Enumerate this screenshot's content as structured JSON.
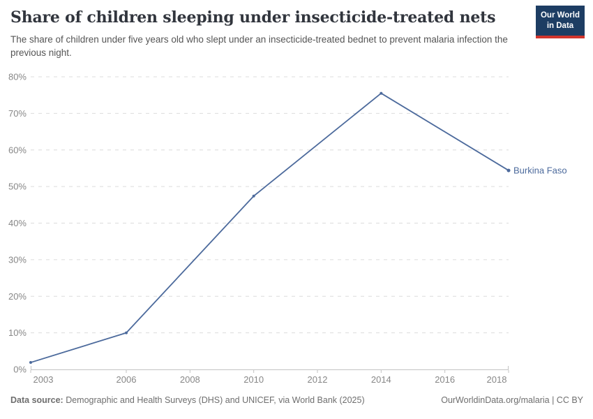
{
  "header": {
    "title": "Share of children sleeping under insecticide-treated nets",
    "subtitle": "The share of children under five years old who slept under an insecticide-treated bednet to prevent malaria infection the previous night.",
    "logo": {
      "line1": "Our World",
      "line2": "in Data"
    }
  },
  "chart_data": {
    "type": "line",
    "title": "Share of children sleeping under insecticide-treated nets",
    "xlabel": "",
    "ylabel": "",
    "xlim": [
      2003,
      2018
    ],
    "ylim": [
      0,
      80
    ],
    "x_ticks": [
      2003,
      2006,
      2008,
      2010,
      2012,
      2014,
      2016,
      2018
    ],
    "y_ticks": [
      0,
      10,
      20,
      30,
      40,
      50,
      60,
      70,
      80
    ],
    "y_tick_suffix": "%",
    "grid": "horizontal-dashed",
    "legend_position": "end-of-line-label",
    "series": [
      {
        "name": "Burkina Faso",
        "color": "#4C6A9C",
        "points": [
          [
            2003,
            1.9
          ],
          [
            2006,
            10
          ],
          [
            2010,
            47.4
          ],
          [
            2014,
            75.5
          ],
          [
            2018,
            54.4
          ]
        ]
      }
    ],
    "style": {
      "grid_color": "#dcdcdc",
      "axis_color": "#c3c3c3",
      "tick_label_color": "#878787"
    }
  },
  "footer": {
    "datasource_label": "Data source:",
    "datasource_text": " Demographic and Health Surveys (DHS) and UNICEF, via World Bank (2025)",
    "attribution": "OurWorldinData.org/malaria | CC BY"
  },
  "colors": {
    "brand_navy": "#1d3d63",
    "brand_red": "#d1342c",
    "line_blue": "#4C6A9C",
    "title_text": "#31353d",
    "subtitle_text": "#555555"
  }
}
